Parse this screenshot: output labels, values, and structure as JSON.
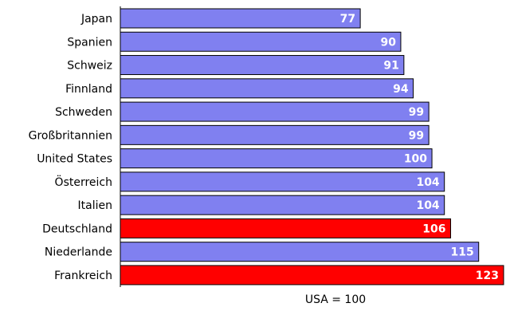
{
  "chart_data": {
    "type": "bar",
    "orientation": "horizontal",
    "categories": [
      "Japan",
      "Spanien",
      "Schweiz",
      "Finnland",
      "Schweden",
      "Großbritannien",
      "United States",
      "Österreich",
      "Italien",
      "Deutschland",
      "Niederlande",
      "Frankreich"
    ],
    "values": [
      77,
      90,
      91,
      94,
      99,
      99,
      100,
      104,
      104,
      106,
      115,
      123
    ],
    "highlighted": [
      "Deutschland",
      "Frankreich"
    ],
    "xlabel": "USA = 100",
    "ylabel": "",
    "title": "",
    "xlim": [
      0,
      123
    ],
    "grid": false,
    "legend": "none",
    "colors": {
      "bar": "#8080f0",
      "highlight": "#ff0000",
      "bar_edge": "#000000",
      "value_label": "#ffffff",
      "text": "#000000",
      "axis": "#000000"
    }
  }
}
